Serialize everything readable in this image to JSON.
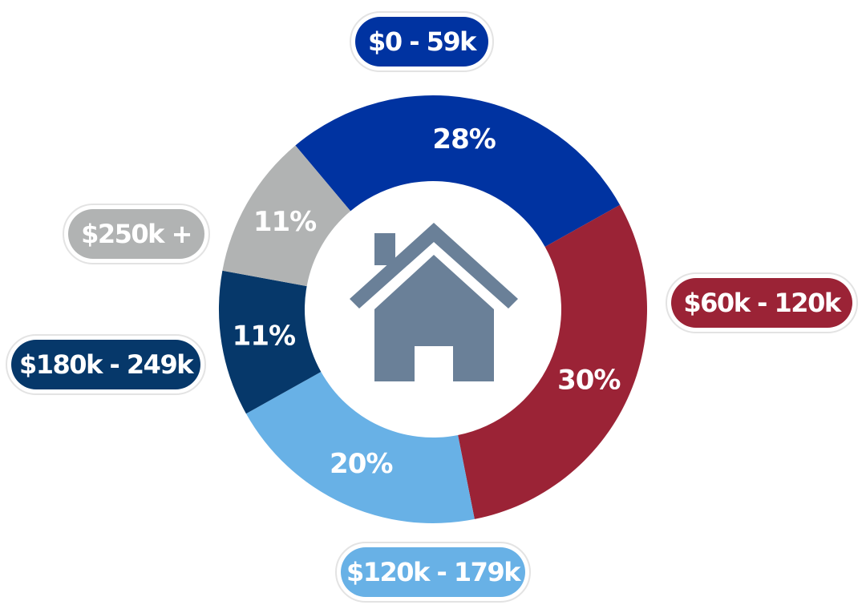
{
  "chart_data": {
    "type": "donut",
    "categories": [
      "$0 - 59k",
      "$60k - 120k",
      "$120k - 179k",
      "$180k - 249k",
      "$250k +"
    ],
    "values": [
      28,
      30,
      20,
      11,
      11
    ],
    "value_labels": [
      "28%",
      "30%",
      "20%",
      "11%",
      "11%"
    ],
    "colors": [
      "#0033a1",
      "#9b2336",
      "#68b1e6",
      "#06386a",
      "#b1b3b3"
    ]
  }
}
